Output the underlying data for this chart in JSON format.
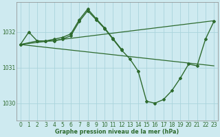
{
  "background_color": "#ceeaf0",
  "grid_color": "#aad4dc",
  "line_color": "#2d6a2d",
  "title": "Graphe pression niveau de la mer (hPa)",
  "xlim": [
    -0.5,
    23.5
  ],
  "ylim": [
    1029.5,
    1032.85
  ],
  "yticks": [
    1030,
    1031,
    1032
  ],
  "xticks": [
    0,
    1,
    2,
    3,
    4,
    5,
    6,
    7,
    8,
    9,
    10,
    11,
    12,
    13,
    14,
    15,
    16,
    17,
    18,
    19,
    20,
    21,
    22,
    23
  ],
  "series": [
    {
      "x": [
        0,
        1,
        2,
        3,
        4,
        5,
        6,
        7,
        8,
        9,
        10,
        11,
        12,
        13,
        14,
        15,
        16,
        17,
        18,
        19,
        20,
        21,
        22,
        23
      ],
      "y": [
        1031.65,
        1032.0,
        1031.75,
        1031.75,
        1031.75,
        1031.8,
        1031.9,
        1032.3,
        1032.6,
        1032.35,
        1032.1,
        1031.8,
        1031.5,
        1031.25,
        1030.9,
        1030.05,
        1030.0,
        1030.1,
        1030.35,
        1030.7,
        1031.1,
        1031.05,
        1031.8,
        1032.3
      ],
      "marker": "D",
      "linewidth": 1.0,
      "markersize": 2.0,
      "zorder": 4
    },
    {
      "x": [
        0,
        2,
        3,
        4,
        5,
        6,
        7,
        8,
        9,
        10,
        11,
        12
      ],
      "y": [
        1031.65,
        1031.75,
        1031.75,
        1031.8,
        1031.85,
        1031.95,
        1032.35,
        1032.65,
        1032.38,
        1032.12,
        1031.82,
        1031.52
      ],
      "marker": "D",
      "linewidth": 1.0,
      "markersize": 2.0,
      "zorder": 3
    },
    {
      "x": [
        0,
        23
      ],
      "y": [
        1031.65,
        1031.05
      ],
      "marker": null,
      "linewidth": 0.9,
      "markersize": 0,
      "zorder": 2
    },
    {
      "x": [
        0,
        23
      ],
      "y": [
        1031.65,
        1032.32
      ],
      "marker": null,
      "linewidth": 0.9,
      "markersize": 0,
      "zorder": 2
    }
  ],
  "tick_fontsize": 5.5,
  "title_fontsize": 5.8,
  "figwidth": 3.2,
  "figheight": 2.0,
  "dpi": 100
}
